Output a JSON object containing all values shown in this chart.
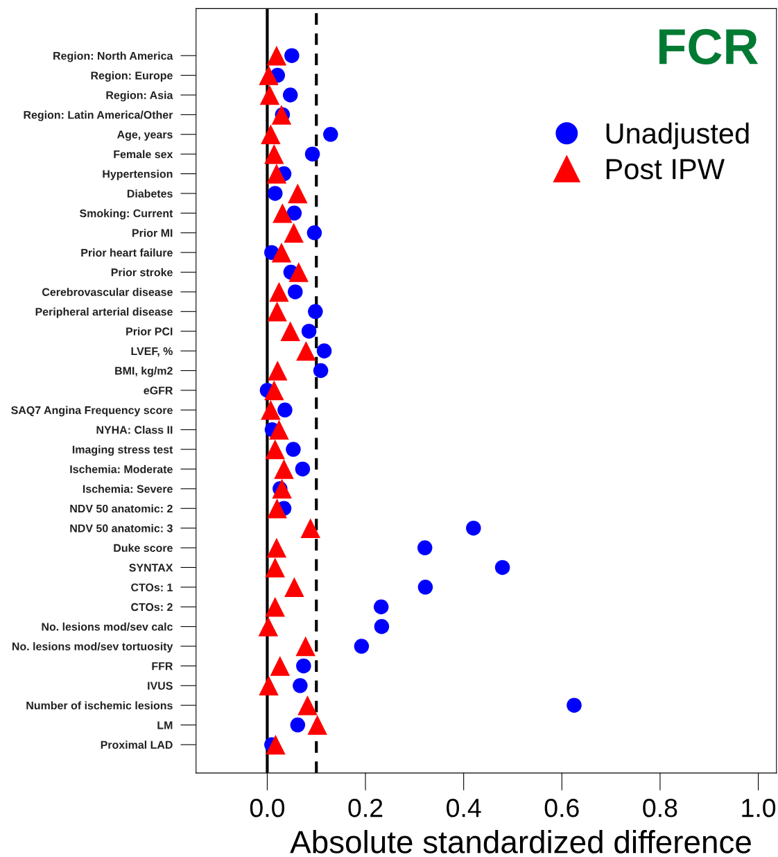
{
  "chart_data": {
    "type": "scatter",
    "title": "FCR",
    "xlabel": "Absolute standardized difference",
    "categories": [
      "Region: North America",
      "Region: Europe",
      "Region: Asia",
      "Region: Latin America/Other",
      "Age, years",
      "Female sex",
      "Hypertension",
      "Diabetes",
      "Smoking: Current",
      "Prior MI",
      "Prior heart failure",
      "Prior stroke",
      "Cerebrovascular disease",
      "Peripheral arterial disease",
      "Prior PCI",
      "LVEF, %",
      "BMI, kg/m2",
      "eGFR",
      "SAQ7 Angina Frequency score",
      "NYHA: Class II",
      "Imaging stress test",
      "Ischemia: Moderate",
      "Ischemia: Severe",
      "NDV 50 anatomic: 2",
      "NDV 50 anatomic: 3",
      "Duke score",
      "SYNTAX",
      "CTOs: 1",
      "CTOs: 2",
      "No. lesions mod/sev calc",
      "No. lesions mod/sev tortuosity",
      "FFR",
      "IVUS",
      "Number of ischemic lesions",
      "LM",
      "Proximal LAD"
    ],
    "orientation": "horizontal",
    "series": [
      {
        "name": "Unadjusted",
        "color": "#0000ff",
        "marker": "circle",
        "values": [
          0.05,
          0.021,
          0.047,
          0.031,
          0.129,
          0.092,
          0.034,
          0.016,
          0.055,
          0.096,
          0.009,
          0.048,
          0.057,
          0.098,
          0.085,
          0.116,
          0.109,
          0.0,
          0.036,
          0.01,
          0.053,
          0.072,
          0.026,
          0.034,
          0.42,
          0.321,
          0.479,
          0.322,
          0.232,
          0.233,
          0.192,
          0.074,
          0.067,
          0.625,
          0.062,
          0.009
        ]
      },
      {
        "name": "Post IPW",
        "color": "#ff0000",
        "marker": "triangle",
        "values": [
          0.019,
          0.003,
          0.005,
          0.029,
          0.007,
          0.014,
          0.019,
          0.062,
          0.031,
          0.054,
          0.029,
          0.064,
          0.024,
          0.02,
          0.047,
          0.079,
          0.021,
          0.014,
          0.007,
          0.024,
          0.016,
          0.034,
          0.03,
          0.02,
          0.088,
          0.019,
          0.016,
          0.055,
          0.016,
          0.002,
          0.078,
          0.026,
          0.003,
          0.082,
          0.102,
          0.017
        ]
      }
    ],
    "xlim": [
      -0.145,
      1.037
    ],
    "xticks": [
      {
        "value": 0,
        "label": "0.0"
      },
      0.2,
      0.4,
      0.6,
      0.8,
      {
        "value": 1,
        "label": "1.0"
      }
    ],
    "ref_lines": [
      {
        "axis": "x",
        "value": 0.0,
        "color": "#000000",
        "line_style": "solid"
      },
      {
        "axis": "x",
        "value": 0.1,
        "color": "#000000",
        "line_style": "dashed"
      }
    ],
    "grid": false,
    "legend": "top right"
  }
}
